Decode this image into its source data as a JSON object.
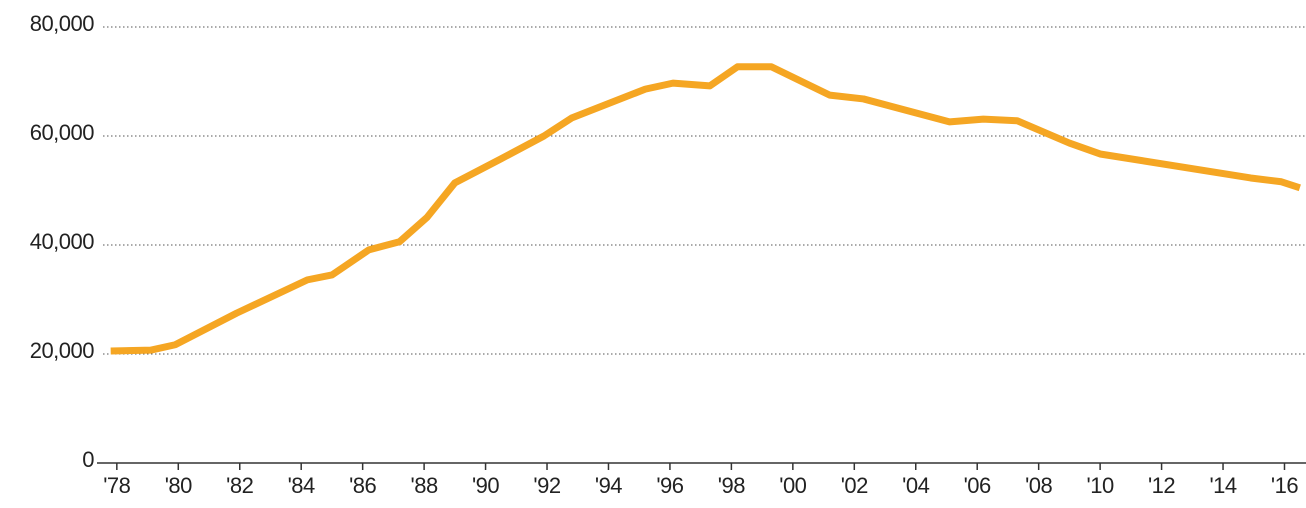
{
  "chart_data": {
    "type": "line",
    "x": [
      1977.8,
      1979.1,
      1979.9,
      1981.9,
      1984.2,
      1985.0,
      1986.2,
      1987.2,
      1988.1,
      1989.0,
      1990.5,
      1991.9,
      1992.8,
      1995.2,
      1996.1,
      1997.3,
      1998.2,
      1999.3,
      2001.2,
      2002.3,
      2005.1,
      2006.2,
      2007.3,
      2009.0,
      2010.0,
      2014.9,
      2015.9,
      2016.5
    ],
    "series": [
      {
        "color": "#f5a623",
        "values": [
          20550,
          20700,
          21700,
          27500,
          33600,
          34500,
          39100,
          40600,
          45100,
          51400,
          55800,
          60000,
          63300,
          68600,
          69700,
          69200,
          72700,
          72700,
          67500,
          66800,
          62600,
          63100,
          62800,
          58700,
          56700,
          52300,
          51600,
          50500
        ]
      }
    ],
    "xlim": [
      1977.55,
      2016.7
    ],
    "xticks": [
      {
        "value": 1978,
        "label": "'78"
      },
      {
        "value": 1980,
        "label": "'80"
      },
      {
        "value": 1982,
        "label": "'82"
      },
      {
        "value": 1984,
        "label": "'84"
      },
      {
        "value": 1986,
        "label": "'86"
      },
      {
        "value": 1988,
        "label": "'88"
      },
      {
        "value": 1990,
        "label": "'90"
      },
      {
        "value": 1992,
        "label": "'92"
      },
      {
        "value": 1994,
        "label": "'94"
      },
      {
        "value": 1996,
        "label": "'96"
      },
      {
        "value": 1998,
        "label": "'98"
      },
      {
        "value": 2000,
        "label": "'00"
      },
      {
        "value": 2002,
        "label": "'02"
      },
      {
        "value": 2004,
        "label": "'04"
      },
      {
        "value": 2006,
        "label": "'06"
      },
      {
        "value": 2008,
        "label": "'08"
      },
      {
        "value": 2010,
        "label": "'10"
      },
      {
        "value": 2012,
        "label": "'12"
      },
      {
        "value": 2014,
        "label": "'14"
      },
      {
        "value": 2016,
        "label": "'16"
      }
    ],
    "ylim": [
      0,
      80000
    ],
    "yticks": [
      0,
      {
        "value": 20000,
        "label": "20,000"
      },
      {
        "value": 40000,
        "label": "40,000"
      },
      {
        "value": 60000,
        "label": "60,000"
      },
      {
        "value": 80000,
        "label": "80,000"
      }
    ],
    "grid": true
  }
}
